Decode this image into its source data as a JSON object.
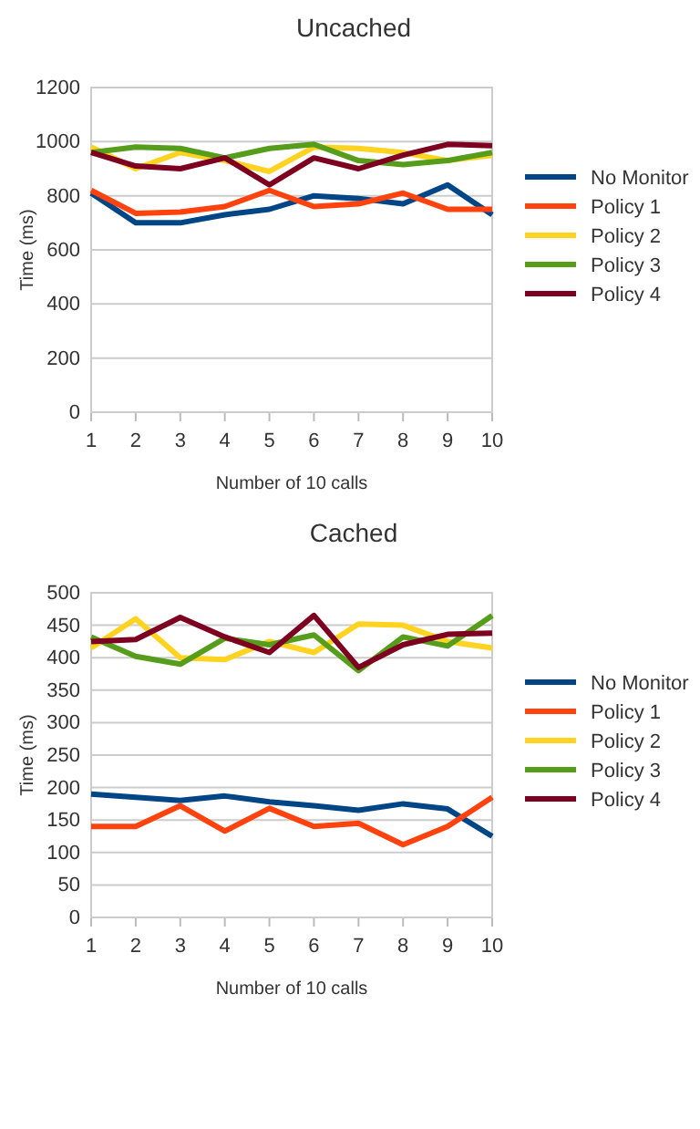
{
  "chart_data": [
    {
      "type": "line",
      "title": "Uncached",
      "xlabel": "Number of 10 calls",
      "ylabel": "Time (ms)",
      "x": [
        1,
        2,
        3,
        4,
        5,
        6,
        7,
        8,
        9,
        10
      ],
      "xlim": [
        1,
        10
      ],
      "xticks": [
        1,
        2,
        3,
        4,
        5,
        6,
        7,
        8,
        9,
        10
      ],
      "ylim": [
        0,
        1200
      ],
      "yticks": [
        0,
        200,
        400,
        600,
        800,
        1000,
        1200
      ],
      "grid": "y",
      "legend": "right",
      "marker": "none",
      "series": [
        {
          "name": "No Monitor",
          "color": "#004586",
          "values": [
            810,
            700,
            700,
            730,
            750,
            800,
            790,
            770,
            840,
            730
          ]
        },
        {
          "name": "Policy 1",
          "color": "#ff420e",
          "values": [
            820,
            735,
            740,
            760,
            820,
            760,
            770,
            810,
            750,
            750
          ]
        },
        {
          "name": "Policy 2",
          "color": "#ffd320",
          "values": [
            980,
            900,
            960,
            930,
            890,
            980,
            975,
            960,
            930,
            950
          ]
        },
        {
          "name": "Policy 3",
          "color": "#579d1c",
          "values": [
            960,
            980,
            975,
            940,
            975,
            990,
            930,
            915,
            930,
            960
          ]
        },
        {
          "name": "Policy 4",
          "color": "#7e0021",
          "values": [
            960,
            910,
            900,
            940,
            840,
            940,
            900,
            950,
            990,
            985
          ]
        }
      ]
    },
    {
      "type": "line",
      "title": "Cached",
      "xlabel": "Number of 10 calls",
      "ylabel": "Time (ms)",
      "x": [
        1,
        2,
        3,
        4,
        5,
        6,
        7,
        8,
        9,
        10
      ],
      "xlim": [
        1,
        10
      ],
      "xticks": [
        1,
        2,
        3,
        4,
        5,
        6,
        7,
        8,
        9,
        10
      ],
      "ylim": [
        0,
        500
      ],
      "yticks": [
        0,
        50,
        100,
        150,
        200,
        250,
        300,
        350,
        400,
        450,
        500
      ],
      "grid": "y",
      "legend": "right",
      "marker": "none",
      "series": [
        {
          "name": "No Monitor",
          "color": "#004586",
          "values": [
            190,
            185,
            180,
            187,
            178,
            172,
            165,
            175,
            167,
            125
          ]
        },
        {
          "name": "Policy 1",
          "color": "#ff420e",
          "values": [
            140,
            140,
            172,
            133,
            168,
            140,
            145,
            112,
            140,
            185
          ]
        },
        {
          "name": "Policy 2",
          "color": "#ffd320",
          "values": [
            415,
            460,
            400,
            397,
            425,
            408,
            452,
            450,
            425,
            415
          ]
        },
        {
          "name": "Policy 3",
          "color": "#579d1c",
          "values": [
            432,
            402,
            390,
            430,
            420,
            435,
            380,
            432,
            418,
            465
          ]
        },
        {
          "name": "Policy 4",
          "color": "#7e0021",
          "values": [
            425,
            428,
            462,
            432,
            408,
            465,
            385,
            420,
            436,
            438
          ]
        }
      ]
    }
  ]
}
